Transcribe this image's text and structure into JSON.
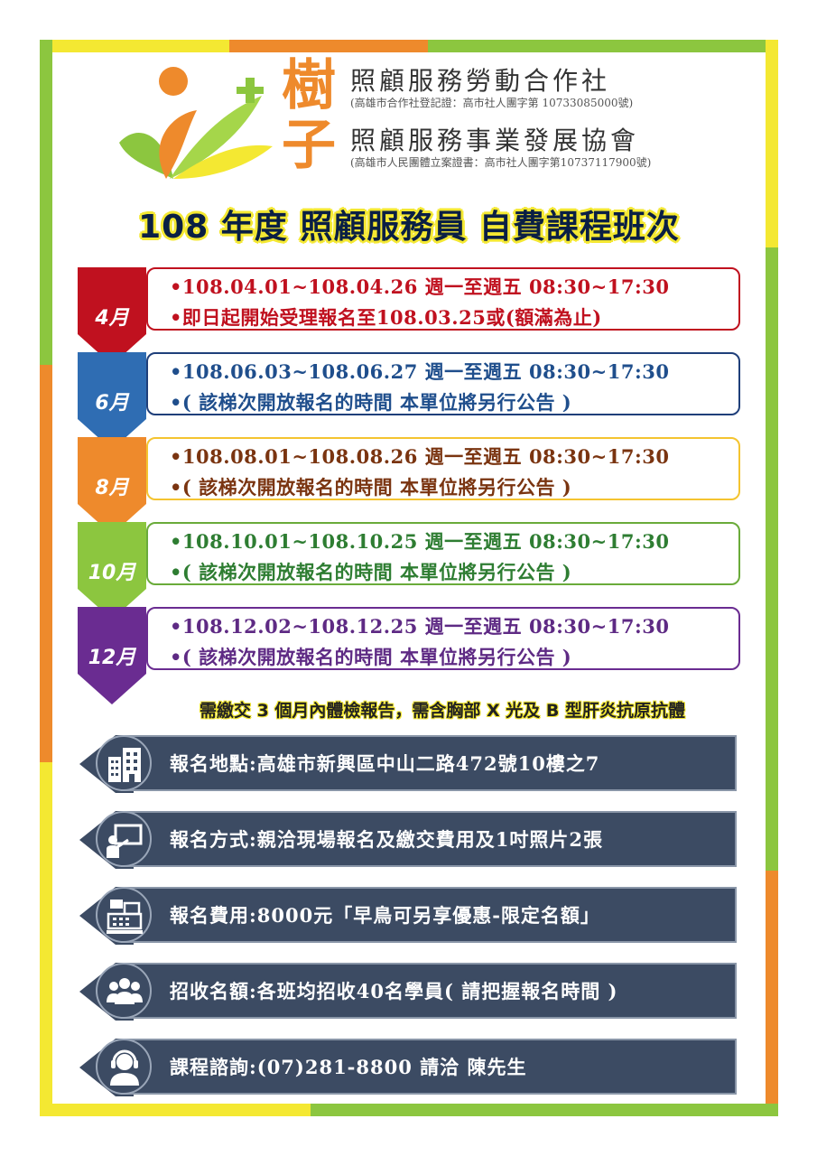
{
  "header": {
    "brand_char_1": "樹",
    "brand_char_2": "子",
    "org1_name": "照顧服務勞動合作社",
    "org1_reg": "(高雄市合作社登記證：高市社人團字第 10733085000號)",
    "org2_name": "照顧服務事業發展協會",
    "org2_reg": "(高雄市人民團體立案證書：高市社人團字第10737117900號)"
  },
  "title": "108 年度 照顧服務員 自費課程班次",
  "months": [
    {
      "label": "4月",
      "line1": "•108.04.01~108.04.26 週一至週五 08:30~17:30",
      "line2": "•即日起開始受理報名至108.03.25或(額滿為止)",
      "color": "#c0111f"
    },
    {
      "label": "6月",
      "line1": "•108.06.03~108.06.27 週一至週五 08:30~17:30",
      "line2": "•( 該梯次開放報名的時間 本單位將另行公告 )",
      "color": "#1f4e8c"
    },
    {
      "label": "8月",
      "line1": "•108.08.01~108.08.26 週一至週五 08:30~17:30",
      "line2": "•( 該梯次開放報名的時間 本單位將另行公告 )",
      "color": "#7a3410"
    },
    {
      "label": "10月",
      "line1": "•108.10.01~108.10.25 週一至週五 08:30~17:30",
      "line2": "•( 該梯次開放報名的時間 本單位將另行公告 )",
      "color": "#2e7d32"
    },
    {
      "label": "12月",
      "line1": "•108.12.02~108.12.25 週一至週五 08:30~17:30",
      "line2": "•( 該梯次開放報名的時間 本單位將另行公告 )",
      "color": "#5e2a84"
    }
  ],
  "month_colors": {
    "tab_4": "#c0111f",
    "tab_6": "#2f6db3",
    "tab_8": "#ee8a2c",
    "tab_10": "#8cc63f",
    "tab_12": "#6a2c91",
    "box_4": "#c0111f",
    "box_6": "#1f3f7a",
    "box_8": "#f4c430",
    "box_10": "#6aab3a",
    "box_12": "#6a2c91"
  },
  "note": "需繳交 3 個月內體檢報告，需含胸部 X 光及 B 型肝炎抗原抗體",
  "info": [
    {
      "icon": "building-icon",
      "text": "報名地點:高雄市新興區中山二路472號10樓之7"
    },
    {
      "icon": "presentation-icon",
      "text": "報名方式:親洽現場報名及繳交費用及1吋照片2張"
    },
    {
      "icon": "cash-register-icon",
      "text": "報名費用:8000元「早鳥可另享優惠-限定名額」"
    },
    {
      "icon": "group-icon",
      "text": "招收名額:各班均招收40名學員( 請把握報名時間 )"
    },
    {
      "icon": "headset-icon",
      "text": "課程諮詢:(07)281-8800 請洽 陳先生"
    }
  ],
  "colors": {
    "info_bar": "#3c4b63",
    "accent_orange": "#ee8a2c",
    "accent_green": "#8cc63f",
    "accent_yellow": "#f4e832"
  }
}
